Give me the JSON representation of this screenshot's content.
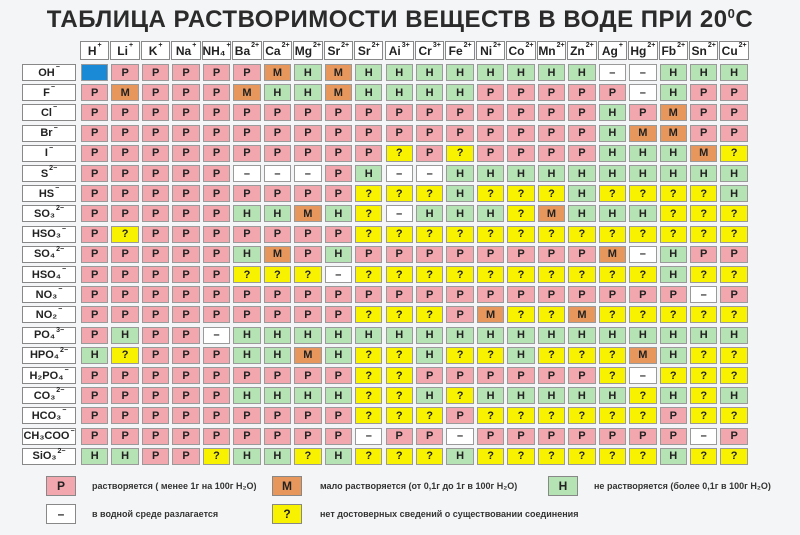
{
  "title": "ТАБЛИЦА РАСТВОРИМОСТИ ВЕЩЕСТВ В ВОДЕ ПРИ 20",
  "title_sup": "0",
  "title_tail": "С",
  "colors": {
    "P": "#f2a6ad",
    "M": "#e7975c",
    "H": "#b6e3b3",
    "?": "#f8f200",
    "-": "#ffffff",
    "blank": "#1b8ad6"
  },
  "cations": [
    {
      "label": "H",
      "charge": "+"
    },
    {
      "label": "Li",
      "charge": "+"
    },
    {
      "label": "K",
      "charge": "+"
    },
    {
      "label": "Na",
      "charge": "+"
    },
    {
      "label": "NH₄",
      "charge": "+"
    },
    {
      "label": "Ba",
      "charge": "2+"
    },
    {
      "label": "Ca",
      "charge": "2+"
    },
    {
      "label": "Mg",
      "charge": "2+"
    },
    {
      "label": "Sr",
      "charge": "2+"
    },
    {
      "label": "Sr",
      "charge": "2+"
    },
    {
      "label": "Ai",
      "charge": "3+"
    },
    {
      "label": "Cr",
      "charge": "3+"
    },
    {
      "label": "Fe",
      "charge": "2+"
    },
    {
      "label": "Ni",
      "charge": "2+"
    },
    {
      "label": "Co",
      "charge": "2+"
    },
    {
      "label": "Mn",
      "charge": "2+"
    },
    {
      "label": "Zn",
      "charge": "2+"
    },
    {
      "label": "Ag",
      "charge": "+"
    },
    {
      "label": "Hg",
      "charge": "2+"
    },
    {
      "label": "Fb",
      "charge": "2+"
    },
    {
      "label": "Sn",
      "charge": "2+"
    },
    {
      "label": "Cu",
      "charge": "2+"
    }
  ],
  "anions": [
    {
      "label": "OH",
      "charge": "−"
    },
    {
      "label": "F",
      "charge": "−"
    },
    {
      "label": "Cl",
      "charge": "−"
    },
    {
      "label": "Br",
      "charge": "−"
    },
    {
      "label": "I",
      "charge": "−"
    },
    {
      "label": "S",
      "charge": "2−"
    },
    {
      "label": "HS",
      "charge": "−"
    },
    {
      "label": "SO₃",
      "charge": "2−"
    },
    {
      "label": "HSO₃",
      "charge": "−"
    },
    {
      "label": "SO₄",
      "charge": "2−"
    },
    {
      "label": "HSO₄",
      "charge": "−"
    },
    {
      "label": "NO₃",
      "charge": "−"
    },
    {
      "label": "NO₂",
      "charge": "−"
    },
    {
      "label": "PO₄",
      "charge": "3−"
    },
    {
      "label": "HPO₄",
      "charge": "2−"
    },
    {
      "label": "H₂PO₄",
      "charge": "−"
    },
    {
      "label": "CO₃",
      "charge": "2−"
    },
    {
      "label": "HCO₃",
      "charge": "−"
    },
    {
      "label": "CH₃COO",
      "charge": "−"
    },
    {
      "label": "SiO₃",
      "charge": "2−"
    }
  ],
  "rows": [
    [
      "",
      "P",
      "P",
      "P",
      "P",
      "P",
      "M",
      "H",
      "M",
      "H",
      "H",
      "H",
      "H",
      "H",
      "H",
      "H",
      "H",
      "-",
      "-",
      "H",
      "H",
      "H"
    ],
    [
      "P",
      "M",
      "P",
      "P",
      "P",
      "M",
      "H",
      "H",
      "M",
      "H",
      "H",
      "H",
      "H",
      "P",
      "P",
      "P",
      "P",
      "P",
      "-",
      "H",
      "P",
      "P"
    ],
    [
      "P",
      "P",
      "P",
      "P",
      "P",
      "P",
      "P",
      "P",
      "P",
      "P",
      "P",
      "P",
      "P",
      "P",
      "P",
      "P",
      "P",
      "H",
      "P",
      "M",
      "P",
      "P"
    ],
    [
      "P",
      "P",
      "P",
      "P",
      "P",
      "P",
      "P",
      "P",
      "P",
      "P",
      "P",
      "P",
      "P",
      "P",
      "P",
      "P",
      "P",
      "H",
      "M",
      "M",
      "P",
      "P"
    ],
    [
      "P",
      "P",
      "P",
      "P",
      "P",
      "P",
      "P",
      "P",
      "P",
      "P",
      "?",
      "P",
      "?",
      "P",
      "P",
      "P",
      "P",
      "H",
      "H",
      "H",
      "M",
      "?"
    ],
    [
      "P",
      "P",
      "P",
      "P",
      "P",
      "-",
      "-",
      "-",
      "P",
      "H",
      "-",
      "-",
      "H",
      "H",
      "H",
      "H",
      "H",
      "H",
      "H",
      "H",
      "H",
      "H"
    ],
    [
      "P",
      "P",
      "P",
      "P",
      "P",
      "P",
      "P",
      "P",
      "P",
      "?",
      "?",
      "?",
      "H",
      "?",
      "?",
      "?",
      "H",
      "?",
      "?",
      "?",
      "?",
      "H"
    ],
    [
      "P",
      "P",
      "P",
      "P",
      "P",
      "H",
      "H",
      "M",
      "H",
      "?",
      "-",
      "H",
      "H",
      "H",
      "?",
      "M",
      "H",
      "H",
      "H",
      "?",
      "?",
      "?"
    ],
    [
      "P",
      "?",
      "P",
      "P",
      "P",
      "P",
      "P",
      "P",
      "P",
      "?",
      "?",
      "?",
      "?",
      "?",
      "?",
      "?",
      "?",
      "?",
      "?",
      "?",
      "?",
      "?"
    ],
    [
      "P",
      "P",
      "P",
      "P",
      "P",
      "H",
      "M",
      "P",
      "H",
      "P",
      "P",
      "P",
      "P",
      "P",
      "P",
      "P",
      "P",
      "M",
      "-",
      "H",
      "P",
      "P"
    ],
    [
      "P",
      "P",
      "P",
      "P",
      "P",
      "?",
      "?",
      "?",
      "-",
      "?",
      "?",
      "?",
      "?",
      "?",
      "?",
      "?",
      "?",
      "?",
      "?",
      "H",
      "?",
      "?"
    ],
    [
      "P",
      "P",
      "P",
      "P",
      "P",
      "P",
      "P",
      "P",
      "P",
      "P",
      "P",
      "P",
      "P",
      "P",
      "P",
      "P",
      "P",
      "P",
      "P",
      "P",
      "-",
      "P"
    ],
    [
      "P",
      "P",
      "P",
      "P",
      "P",
      "P",
      "P",
      "P",
      "P",
      "?",
      "?",
      "?",
      "P",
      "M",
      "?",
      "?",
      "M",
      "?",
      "?",
      "?",
      "?",
      "?"
    ],
    [
      "P",
      "H",
      "P",
      "P",
      "-",
      "H",
      "H",
      "H",
      "H",
      "H",
      "H",
      "H",
      "H",
      "H",
      "H",
      "H",
      "H",
      "H",
      "H",
      "H",
      "H",
      "H"
    ],
    [
      "H",
      "?",
      "P",
      "P",
      "P",
      "H",
      "H",
      "M",
      "H",
      "?",
      "?",
      "H",
      "?",
      "?",
      "H",
      "?",
      "?",
      "?",
      "M",
      "H",
      "?",
      "?"
    ],
    [
      "P",
      "P",
      "P",
      "P",
      "P",
      "P",
      "P",
      "P",
      "P",
      "?",
      "?",
      "P",
      "P",
      "P",
      "P",
      "P",
      "P",
      "?",
      "-",
      "?",
      "?",
      "?"
    ],
    [
      "P",
      "P",
      "P",
      "P",
      "P",
      "H",
      "H",
      "H",
      "H",
      "?",
      "?",
      "H",
      "?",
      "H",
      "H",
      "H",
      "H",
      "H",
      "?",
      "H",
      "?",
      "H"
    ],
    [
      "P",
      "P",
      "P",
      "P",
      "P",
      "P",
      "P",
      "P",
      "P",
      "?",
      "?",
      "?",
      "P",
      "?",
      "?",
      "?",
      "?",
      "?",
      "?",
      "P",
      "?",
      "?"
    ],
    [
      "P",
      "P",
      "P",
      "P",
      "P",
      "P",
      "P",
      "P",
      "P",
      "-",
      "P",
      "P",
      "-",
      "P",
      "P",
      "P",
      "P",
      "P",
      "P",
      "P",
      "-",
      "P"
    ],
    [
      "H",
      "H",
      "P",
      "P",
      "?",
      "H",
      "H",
      "?",
      "H",
      "?",
      "?",
      "?",
      "H",
      "?",
      "?",
      "?",
      "?",
      "?",
      "?",
      "H",
      "?",
      "?"
    ]
  ],
  "legend": [
    {
      "symbol": "P",
      "text": "растворяется ( менее 1г на 100г H₂O)"
    },
    {
      "symbol": "M",
      "text": "мало растворяется (от 0,1г до 1г в 100г H₂O)"
    },
    {
      "symbol": "H",
      "text": "не растворяется (более 0,1г в 100г H₂O)"
    },
    {
      "symbol": "–",
      "text": "в водной среде разлагается"
    },
    {
      "symbol": "?",
      "text": "нет достоверных сведений о существовании соединения"
    }
  ]
}
